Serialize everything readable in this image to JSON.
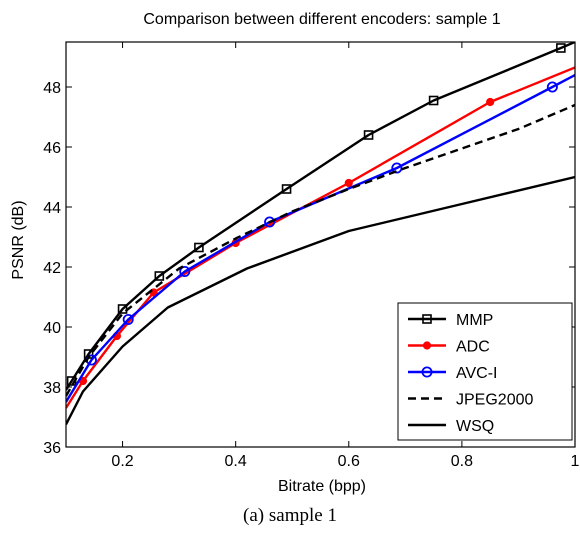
{
  "caption": "(a) sample 1",
  "chart_data": {
    "type": "line",
    "title": "Comparison between different encoders: sample 1",
    "xlabel": "Bitrate (bpp)",
    "ylabel": "PSNR (dB)",
    "xlim": [
      0.1,
      1.0
    ],
    "ylim": [
      36,
      49.5
    ],
    "xticks": [
      0.2,
      0.4,
      0.6,
      0.8,
      1
    ],
    "xtick_labels": [
      "0.2",
      "0.4",
      "0.6",
      "0.8",
      "1"
    ],
    "yticks": [
      36,
      38,
      40,
      42,
      44,
      46,
      48
    ],
    "ytick_labels": [
      "36",
      "38",
      "40",
      "42",
      "44",
      "46",
      "48"
    ],
    "grid": false,
    "legend_position": "bottom-right",
    "series": [
      {
        "name": "MMP",
        "color": "#000000",
        "line_style": "solid",
        "marker": "square",
        "x": [
          0.1,
          0.11,
          0.14,
          0.2,
          0.265,
          0.335,
          0.49,
          0.635,
          0.75,
          0.975,
          1.0
        ],
        "y": [
          37.9,
          38.2,
          39.1,
          40.6,
          41.7,
          42.65,
          44.6,
          46.4,
          47.55,
          49.3,
          49.5
        ],
        "markers_at": [
          1,
          2,
          3,
          4,
          5,
          6,
          7,
          8,
          9
        ]
      },
      {
        "name": "ADC",
        "color": "#ff0000",
        "line_style": "solid",
        "marker": "dot",
        "x": [
          0.1,
          0.13,
          0.19,
          0.255,
          0.4,
          0.6,
          0.85,
          1.0
        ],
        "y": [
          37.3,
          38.2,
          39.7,
          41.15,
          42.8,
          44.8,
          47.5,
          48.65
        ],
        "markers_at": [
          1,
          2,
          3,
          4,
          5,
          6
        ]
      },
      {
        "name": "AVC-I",
        "color": "#0000ff",
        "line_style": "solid",
        "marker": "circle",
        "x": [
          0.1,
          0.145,
          0.21,
          0.31,
          0.46,
          0.685,
          0.96,
          1.0
        ],
        "y": [
          37.5,
          38.9,
          40.25,
          41.85,
          43.5,
          45.3,
          48.0,
          48.4
        ],
        "markers_at": [
          1,
          2,
          3,
          4,
          5,
          6
        ]
      },
      {
        "name": "JPEG2000",
        "color": "#000000",
        "line_style": "dashed",
        "marker": "none",
        "x": [
          0.1,
          0.14,
          0.2,
          0.3,
          0.4,
          0.5,
          0.6,
          0.7,
          0.8,
          0.9,
          1.0
        ],
        "y": [
          37.7,
          39.0,
          40.45,
          41.95,
          42.95,
          43.85,
          44.6,
          45.3,
          45.95,
          46.6,
          47.4
        ]
      },
      {
        "name": "WSQ",
        "color": "#000000",
        "line_style": "solid",
        "marker": "none",
        "x": [
          0.1,
          0.13,
          0.2,
          0.28,
          0.42,
          0.6,
          0.8,
          1.0
        ],
        "y": [
          36.75,
          37.85,
          39.35,
          40.65,
          41.95,
          43.2,
          44.1,
          45.0
        ]
      }
    ]
  }
}
